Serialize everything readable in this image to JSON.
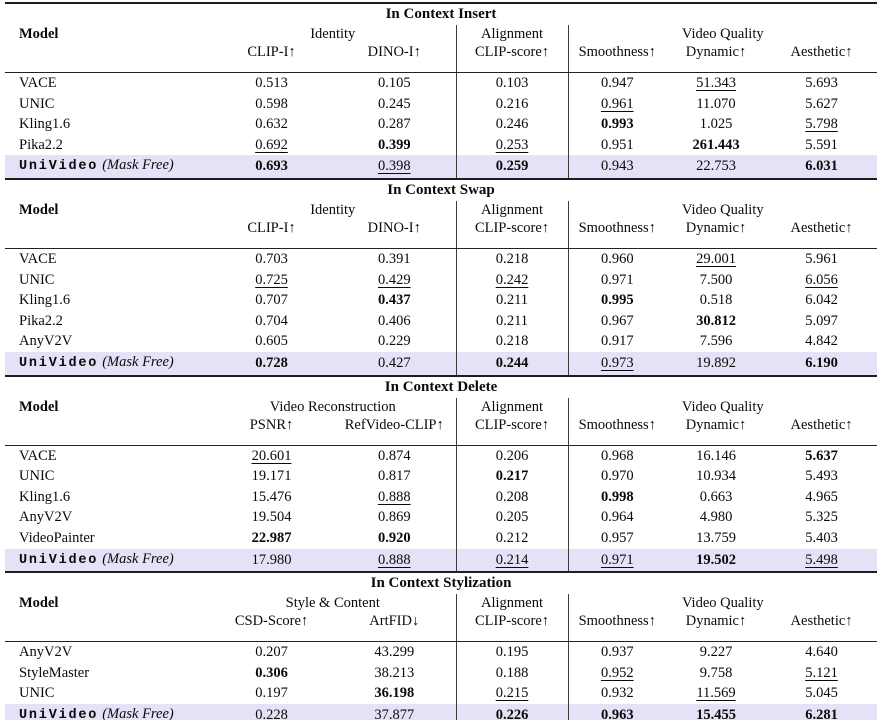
{
  "page": {
    "background_color": "#ffffff",
    "text_color": "#0a0a0a",
    "highlight_color": "#e4e2f6",
    "rule_color": "#1d1d1d"
  },
  "table": {
    "sections": [
      {
        "title": "In Context Insert",
        "model_header": "Model",
        "groups": [
          {
            "label": "Identity",
            "cols": [
              "CLIP-I↑",
              "DINO-I↑"
            ]
          },
          {
            "label": "Alignment",
            "cols": [
              "CLIP-score↑"
            ]
          },
          {
            "label": "Video Quality",
            "cols": [
              "Smoothness↑",
              "Dynamic↑",
              "Aesthetic↑"
            ]
          }
        ],
        "rows": [
          {
            "model": "VACE",
            "cells": [
              {
                "v": "0.513"
              },
              {
                "v": "0.105"
              },
              {
                "v": "0.103"
              },
              {
                "v": "0.947"
              },
              {
                "v": "51.343",
                "f": "u"
              },
              {
                "v": "5.693"
              }
            ]
          },
          {
            "model": "UNIC",
            "cells": [
              {
                "v": "0.598"
              },
              {
                "v": "0.245"
              },
              {
                "v": "0.216"
              },
              {
                "v": "0.961",
                "f": "u"
              },
              {
                "v": "11.070"
              },
              {
                "v": "5.627"
              }
            ]
          },
          {
            "model": "Kling1.6",
            "cells": [
              {
                "v": "0.632"
              },
              {
                "v": "0.287"
              },
              {
                "v": "0.246"
              },
              {
                "v": "0.993",
                "f": "b"
              },
              {
                "v": "1.025"
              },
              {
                "v": "5.798",
                "f": "u"
              }
            ]
          },
          {
            "model": "Pika2.2",
            "cells": [
              {
                "v": "0.692",
                "f": "u"
              },
              {
                "v": "0.399",
                "f": "b"
              },
              {
                "v": "0.253",
                "f": "u"
              },
              {
                "v": "0.951"
              },
              {
                "v": "261.443",
                "f": "b"
              },
              {
                "v": "5.591"
              }
            ]
          },
          {
            "model": "UniVideo",
            "suffix": "(Mask Free)",
            "highlight": true,
            "cells": [
              {
                "v": "0.693",
                "f": "b"
              },
              {
                "v": "0.398",
                "f": "u"
              },
              {
                "v": "0.259",
                "f": "b"
              },
              {
                "v": "0.943"
              },
              {
                "v": "22.753"
              },
              {
                "v": "6.031",
                "f": "b"
              }
            ]
          }
        ]
      },
      {
        "title": "In Context Swap",
        "model_header": "Model",
        "groups": [
          {
            "label": "Identity",
            "cols": [
              "CLIP-I↑",
              "DINO-I↑"
            ]
          },
          {
            "label": "Alignment",
            "cols": [
              "CLIP-score↑"
            ]
          },
          {
            "label": "Video Quality",
            "cols": [
              "Smoothness↑",
              "Dynamic↑",
              "Aesthetic↑"
            ]
          }
        ],
        "rows": [
          {
            "model": "VACE",
            "cells": [
              {
                "v": "0.703"
              },
              {
                "v": "0.391"
              },
              {
                "v": "0.218"
              },
              {
                "v": "0.960"
              },
              {
                "v": "29.001",
                "f": "u"
              },
              {
                "v": "5.961"
              }
            ]
          },
          {
            "model": "UNIC",
            "cells": [
              {
                "v": "0.725",
                "f": "u"
              },
              {
                "v": "0.429",
                "f": "u"
              },
              {
                "v": "0.242",
                "f": "u"
              },
              {
                "v": "0.971"
              },
              {
                "v": "7.500"
              },
              {
                "v": "6.056",
                "f": "u"
              }
            ]
          },
          {
            "model": "Kling1.6",
            "cells": [
              {
                "v": "0.707"
              },
              {
                "v": "0.437",
                "f": "b"
              },
              {
                "v": "0.211"
              },
              {
                "v": "0.995",
                "f": "b"
              },
              {
                "v": "0.518"
              },
              {
                "v": "6.042"
              }
            ]
          },
          {
            "model": "Pika2.2",
            "cells": [
              {
                "v": "0.704"
              },
              {
                "v": "0.406"
              },
              {
                "v": "0.211"
              },
              {
                "v": "0.967"
              },
              {
                "v": "30.812",
                "f": "b"
              },
              {
                "v": "5.097"
              }
            ]
          },
          {
            "model": "AnyV2V",
            "cells": [
              {
                "v": "0.605"
              },
              {
                "v": "0.229"
              },
              {
                "v": "0.218"
              },
              {
                "v": "0.917"
              },
              {
                "v": "7.596"
              },
              {
                "v": "4.842"
              }
            ]
          },
          {
            "model": "UniVideo",
            "suffix": "(Mask Free)",
            "highlight": true,
            "cells": [
              {
                "v": "0.728",
                "f": "b"
              },
              {
                "v": "0.427"
              },
              {
                "v": "0.244",
                "f": "b"
              },
              {
                "v": "0.973",
                "f": "u"
              },
              {
                "v": "19.892"
              },
              {
                "v": "6.190",
                "f": "b"
              }
            ]
          }
        ]
      },
      {
        "title": "In Context Delete",
        "model_header": "Model",
        "groups": [
          {
            "label": "Video Reconstruction",
            "cols": [
              "PSNR↑",
              "RefVideo-CLIP↑"
            ]
          },
          {
            "label": "Alignment",
            "cols": [
              "CLIP-score↑"
            ]
          },
          {
            "label": "Video Quality",
            "cols": [
              "Smoothness↑",
              "Dynamic↑",
              "Aesthetic↑"
            ]
          }
        ],
        "rows": [
          {
            "model": "VACE",
            "cells": [
              {
                "v": "20.601",
                "f": "u"
              },
              {
                "v": "0.874"
              },
              {
                "v": "0.206"
              },
              {
                "v": "0.968"
              },
              {
                "v": "16.146"
              },
              {
                "v": "5.637",
                "f": "b"
              }
            ]
          },
          {
            "model": "UNIC",
            "cells": [
              {
                "v": "19.171"
              },
              {
                "v": "0.817"
              },
              {
                "v": "0.217",
                "f": "b"
              },
              {
                "v": "0.970"
              },
              {
                "v": "10.934"
              },
              {
                "v": "5.493"
              }
            ]
          },
          {
            "model": "Kling1.6",
            "cells": [
              {
                "v": "15.476"
              },
              {
                "v": "0.888",
                "f": "u"
              },
              {
                "v": "0.208"
              },
              {
                "v": "0.998",
                "f": "b"
              },
              {
                "v": "0.663"
              },
              {
                "v": "4.965"
              }
            ]
          },
          {
            "model": "AnyV2V",
            "cells": [
              {
                "v": "19.504"
              },
              {
                "v": "0.869"
              },
              {
                "v": "0.205"
              },
              {
                "v": "0.964"
              },
              {
                "v": "4.980"
              },
              {
                "v": "5.325"
              }
            ]
          },
          {
            "model": "VideoPainter",
            "cells": [
              {
                "v": "22.987",
                "f": "b"
              },
              {
                "v": "0.920",
                "f": "b"
              },
              {
                "v": "0.212"
              },
              {
                "v": "0.957"
              },
              {
                "v": "13.759"
              },
              {
                "v": "5.403"
              }
            ]
          },
          {
            "model": "UniVideo",
            "suffix": "(Mask Free)",
            "highlight": true,
            "cells": [
              {
                "v": "17.980"
              },
              {
                "v": "0.888",
                "f": "u"
              },
              {
                "v": "0.214",
                "f": "u"
              },
              {
                "v": "0.971",
                "f": "u"
              },
              {
                "v": "19.502",
                "f": "b"
              },
              {
                "v": "5.498",
                "f": "u"
              }
            ]
          }
        ]
      },
      {
        "title": "In Context Stylization",
        "model_header": "Model",
        "groups": [
          {
            "label": "Style & Content",
            "cols": [
              "CSD-Score↑",
              "ArtFID↓"
            ]
          },
          {
            "label": "Alignment",
            "cols": [
              "CLIP-score↑"
            ]
          },
          {
            "label": "Video Quality",
            "cols": [
              "Smoothness↑",
              "Dynamic↑",
              "Aesthetic↑"
            ]
          }
        ],
        "rows": [
          {
            "model": "AnyV2V",
            "cells": [
              {
                "v": "0.207"
              },
              {
                "v": "43.299"
              },
              {
                "v": "0.195"
              },
              {
                "v": "0.937"
              },
              {
                "v": "9.227"
              },
              {
                "v": "4.640"
              }
            ]
          },
          {
            "model": "StyleMaster",
            "cells": [
              {
                "v": "0.306",
                "f": "b"
              },
              {
                "v": "38.213"
              },
              {
                "v": "0.188"
              },
              {
                "v": "0.952",
                "f": "u"
              },
              {
                "v": "9.758"
              },
              {
                "v": "5.121",
                "f": "u"
              }
            ]
          },
          {
            "model": "UNIC",
            "cells": [
              {
                "v": "0.197"
              },
              {
                "v": "36.198",
                "f": "b"
              },
              {
                "v": "0.215",
                "f": "u"
              },
              {
                "v": "0.932"
              },
              {
                "v": "11.569",
                "f": "u"
              },
              {
                "v": "5.045"
              }
            ]
          },
          {
            "model": "UniVideo",
            "suffix": "(Mask Free)",
            "highlight": true,
            "cells": [
              {
                "v": "0.228",
                "f": "u"
              },
              {
                "v": "37.877",
                "f": "u"
              },
              {
                "v": "0.226",
                "f": "b"
              },
              {
                "v": "0.963",
                "f": "b"
              },
              {
                "v": "15.455",
                "f": "b"
              },
              {
                "v": "6.281",
                "f": "b"
              }
            ]
          }
        ]
      }
    ]
  }
}
